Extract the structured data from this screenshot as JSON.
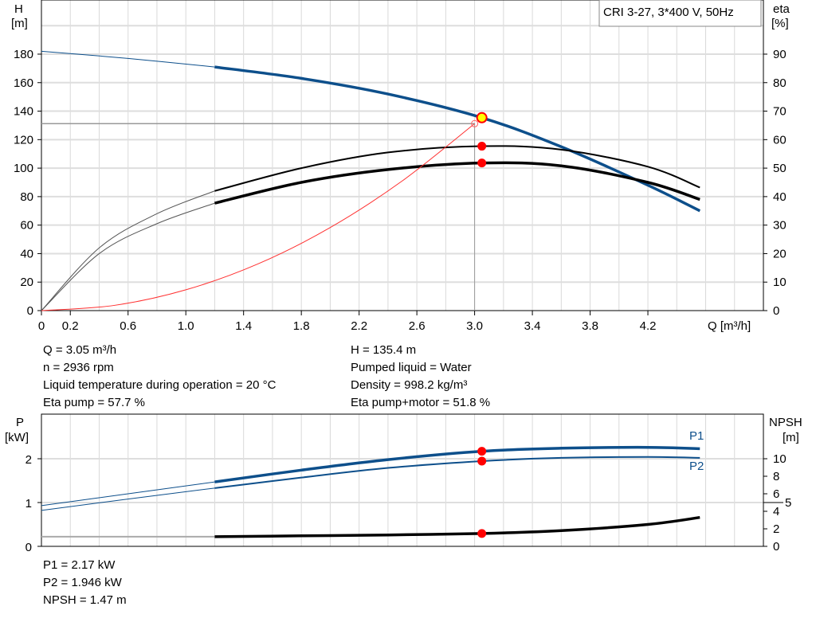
{
  "chart_data": [
    {
      "type": "line",
      "title": "CRI 3-27, 3*400 V, 50Hz",
      "xlabel": "Q [m³/h]",
      "ylabel_left": [
        "H",
        "[m]"
      ],
      "ylabel_right": [
        "eta",
        "[%]"
      ],
      "xlim": [
        0,
        5.0
      ],
      "ylim_left": [
        0,
        218
      ],
      "ylim_right": [
        0,
        109
      ],
      "x_ticks": [
        "0",
        "0.2",
        "0.6",
        "1.0",
        "1.4",
        "1.8",
        "2.2",
        "2.6",
        "3.0",
        "3.4",
        "3.8",
        "4.2"
      ],
      "y_ticks_left": [
        "0",
        "20",
        "40",
        "60",
        "80",
        "100",
        "120",
        "140",
        "160",
        "180"
      ],
      "y_ticks_right": [
        "0",
        "10",
        "20",
        "30",
        "40",
        "50",
        "60",
        "70",
        "80",
        "90"
      ],
      "grid": true,
      "series": [
        {
          "axis": "left",
          "color": "#0d4f8b",
          "x": [
            0,
            0.6,
            1.2,
            1.8,
            2.4,
            3.05,
            3.6,
            4.2,
            4.56
          ],
          "values": [
            182,
            177,
            171,
            163,
            152,
            135.4,
            115,
            88,
            70
          ]
        },
        {
          "axis": "right",
          "color": "#000000",
          "x": [
            0,
            0.4,
            0.8,
            1.2,
            1.8,
            2.4,
            3.05,
            3.6,
            4.2,
            4.56
          ],
          "values": [
            0,
            22,
            34,
            42,
            50,
            55.5,
            57.7,
            56.5,
            50.5,
            43.2
          ]
        },
        {
          "axis": "right",
          "color": "#000000",
          "x": [
            0,
            0.4,
            0.8,
            1.2,
            1.8,
            2.4,
            3.05,
            3.6,
            4.2,
            4.56
          ],
          "values": [
            0,
            20,
            30.5,
            37.7,
            45,
            49.5,
            51.8,
            50.8,
            45,
            39
          ]
        },
        {
          "axis": "left",
          "color": "#ff3030",
          "x": [
            0,
            0.5,
            1.0,
            1.5,
            2.0,
            2.5,
            3.0
          ],
          "values": [
            0,
            3.6,
            14.6,
            32.8,
            58.3,
            91.1,
            131.2
          ]
        }
      ],
      "duty_point": {
        "q": 3.05,
        "h": 135.4,
        "eta_pump": 57.7,
        "eta_total": 51.8,
        "operating_line_h": 131.2,
        "operating_line_q": 3.0
      }
    },
    {
      "type": "line",
      "xlim": [
        0,
        5.0
      ],
      "ylabel_left": [
        "P",
        "[kW]"
      ],
      "ylabel_right": [
        "NPSH",
        "[m]"
      ],
      "ylim_left": [
        0,
        3.0
      ],
      "ylim_right": [
        0,
        15
      ],
      "y_ticks_left": [
        "0",
        "1",
        "2"
      ],
      "y_ticks_right": [
        "0",
        "2",
        "4",
        "5",
        "6",
        "8",
        "10"
      ],
      "grid": true,
      "series": [
        {
          "name": "P1",
          "axis": "left",
          "color": "#0d4f8b",
          "x": [
            0,
            0.6,
            1.2,
            1.8,
            2.4,
            3.05,
            3.6,
            4.2,
            4.56
          ],
          "values": [
            0.93,
            1.2,
            1.47,
            1.74,
            1.98,
            2.17,
            2.24,
            2.26,
            2.23
          ]
        },
        {
          "name": "P2",
          "axis": "left",
          "color": "#0d4f8b",
          "x": [
            0,
            0.6,
            1.2,
            1.8,
            2.4,
            3.05,
            3.6,
            4.2,
            4.56
          ],
          "values": [
            0.82,
            1.08,
            1.33,
            1.57,
            1.79,
            1.946,
            2.02,
            2.04,
            2.02
          ]
        },
        {
          "name": "NPSH",
          "axis": "right",
          "color": "#000000",
          "x": [
            0,
            0.6,
            1.2,
            1.8,
            2.4,
            3.05,
            3.6,
            4.2,
            4.56
          ],
          "values": [
            1.1,
            1.1,
            1.1,
            1.2,
            1.3,
            1.47,
            1.8,
            2.5,
            3.3
          ]
        }
      ],
      "duty_point": {
        "q": 3.05,
        "p1": 2.17,
        "p2": 1.946,
        "npsh": 1.47
      }
    }
  ],
  "info": {
    "left": [
      "Q = 3.05 m³/h",
      "n = 2936 rpm",
      "Liquid temperature during operation = 20 °C",
      "Eta pump = 57.7 %"
    ],
    "right": [
      "H = 135.4 m",
      "Pumped liquid = Water",
      "Density = 998.2 kg/m³",
      "Eta pump+motor = 51.8 %"
    ],
    "bottom": [
      "P1 = 2.17 kW",
      "P2 = 1.946 kW",
      "NPSH = 1.47 m"
    ]
  },
  "colors": {
    "curve_blue": "#0d4f8b",
    "marker_red": "#ff0000",
    "duty_marker_fill": "#ffff00",
    "system_curve": "#ff3030",
    "grid": "#d9d9d9"
  }
}
